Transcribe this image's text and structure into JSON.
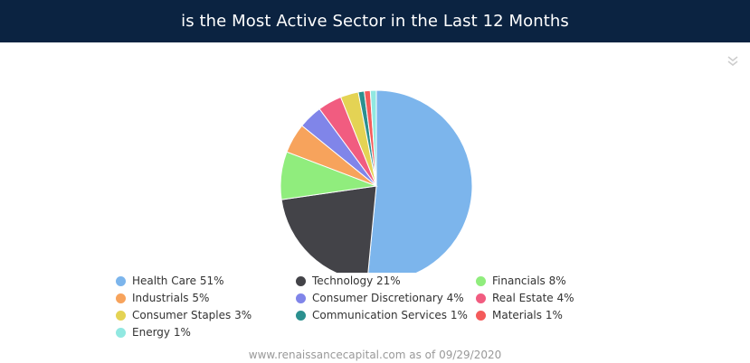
{
  "header": {
    "title": "is the Most Active Sector in the Last 12 Months"
  },
  "menu": {
    "icon": "double-chevron-down-icon"
  },
  "footer": {
    "source": "www.renaissancecapital.com as of 09/29/2020"
  },
  "chart_data": {
    "type": "pie",
    "title": "is the Most Active Sector in the Last 12 Months",
    "legend_position": "bottom",
    "slices": [
      {
        "label": "Health Care 51%",
        "name": "Health Care",
        "value": 51,
        "color": "#7cb5ec"
      },
      {
        "label": "Technology 21%",
        "name": "Technology",
        "value": 21,
        "color": "#434348"
      },
      {
        "label": "Financials 8%",
        "name": "Financials",
        "value": 8,
        "color": "#90ed7d"
      },
      {
        "label": "Industrials 5%",
        "name": "Industrials",
        "value": 5,
        "color": "#f7a35c"
      },
      {
        "label": "Consumer Discretionary 4%",
        "name": "Consumer Discretionary",
        "value": 4,
        "color": "#8085e9"
      },
      {
        "label": "Real Estate 4%",
        "name": "Real Estate",
        "value": 4,
        "color": "#f15c80"
      },
      {
        "label": "Consumer Staples 3%",
        "name": "Consumer Staples",
        "value": 3,
        "color": "#e4d354"
      },
      {
        "label": "Communication Services 1%",
        "name": "Communication Services",
        "value": 1,
        "color": "#2b908f"
      },
      {
        "label": "Materials 1%",
        "name": "Materials",
        "value": 1,
        "color": "#f45b5b"
      },
      {
        "label": "Energy 1%",
        "name": "Energy",
        "value": 1,
        "color": "#91e8e1"
      }
    ]
  }
}
